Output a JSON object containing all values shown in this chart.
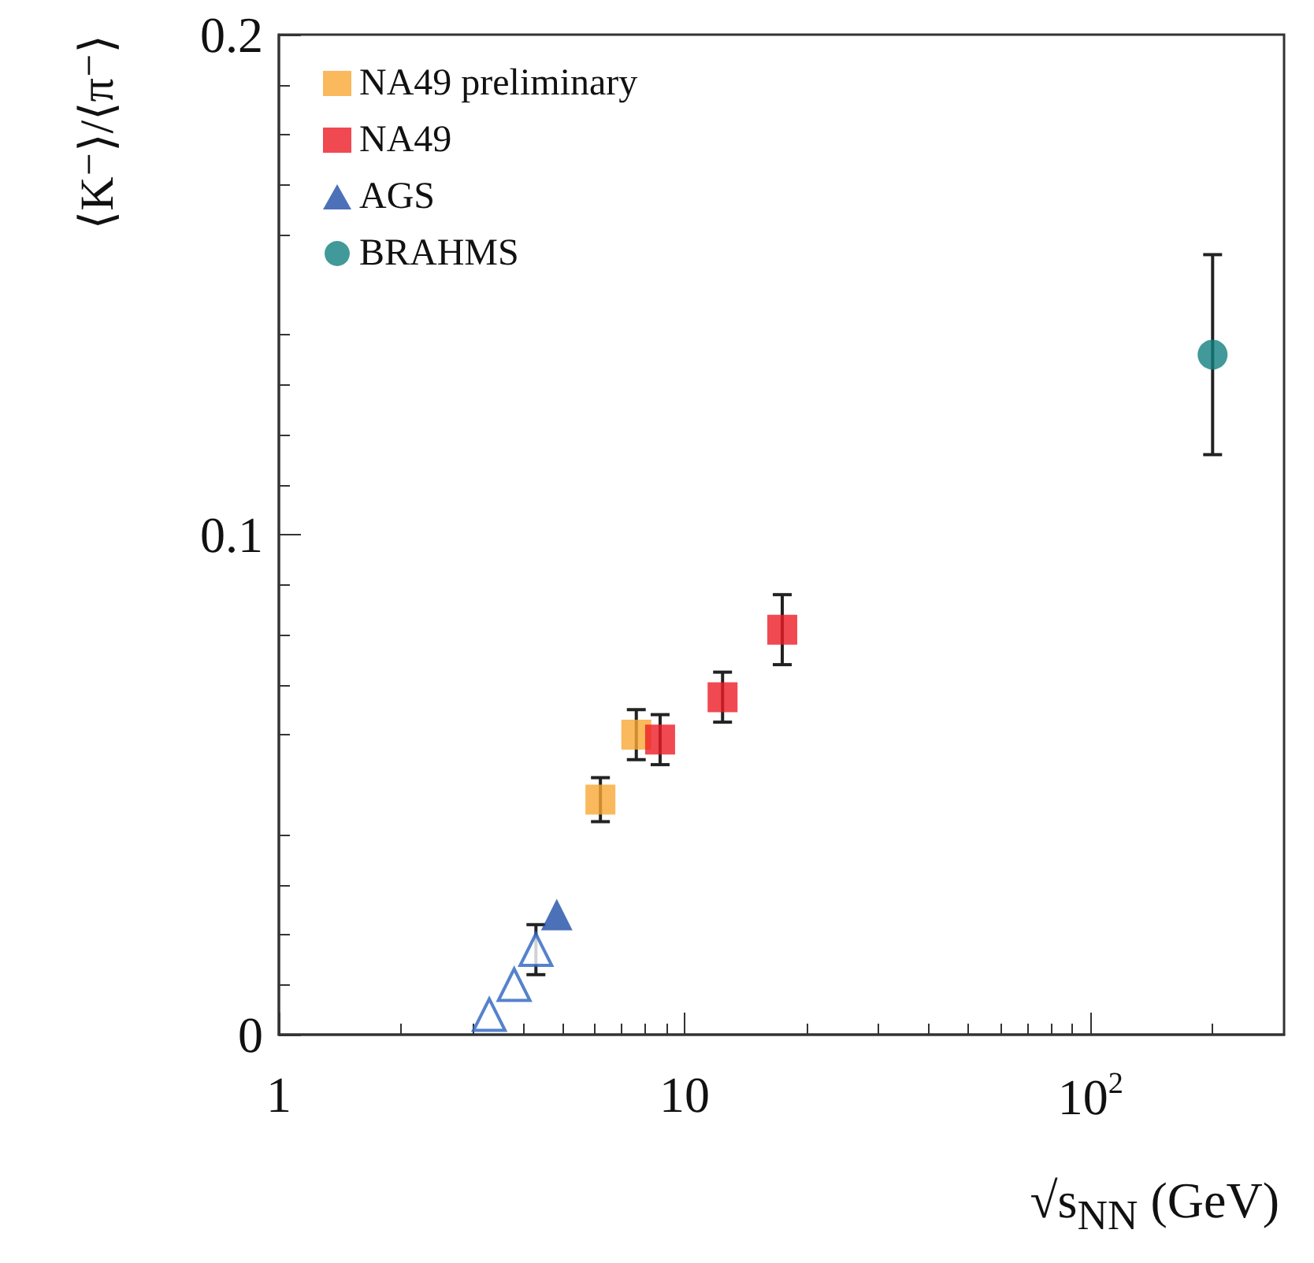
{
  "chart_data": {
    "type": "scatter",
    "xlabel": "√s$_{NN}$ (GeV)",
    "ylabel": "⟨K⁻⟩/⟨π⁻⟩",
    "log": "x",
    "xlim": [
      1,
      300
    ],
    "xticks": [
      1,
      10,
      {
        "value": 100,
        "label": "10$^{2}$"
      }
    ],
    "ylim": [
      0,
      0.2
    ],
    "yticks": [
      0,
      0.1,
      0.2
    ],
    "grid": false,
    "legend": "top left",
    "series": [
      {
        "name": "NA49 preliminary",
        "color": "#f7a833",
        "marker": "square",
        "x": [
          6.2,
          7.6
        ],
        "values": [
          0.047,
          0.06
        ],
        "errors": [
          0.0044,
          0.005
        ]
      },
      {
        "name": "NA49",
        "color": "#ee1c25",
        "marker": "square",
        "x": [
          8.7,
          12.4,
          17.4
        ],
        "values": [
          0.059,
          0.0675,
          0.081
        ],
        "errors": [
          0.005,
          0.005,
          0.007
        ]
      },
      {
        "name": "AGS",
        "color": "#1f4ea8",
        "marker": "triangle",
        "x": [
          4.84
        ],
        "values": [
          0.024
        ],
        "errors": [
          null
        ]
      },
      {
        "color": "#2b63c0",
        "marker": "triangle",
        "x": [
          3.3,
          3.8,
          4.3
        ],
        "values": [
          0.004,
          0.01,
          0.017
        ],
        "errors": [
          null,
          null,
          0.005
        ]
      },
      {
        "name": "BRAHMS",
        "color": "#118080",
        "marker": "circle",
        "x": [
          200
        ],
        "values": [
          0.136
        ],
        "errors": [
          0.02
        ]
      }
    ]
  }
}
